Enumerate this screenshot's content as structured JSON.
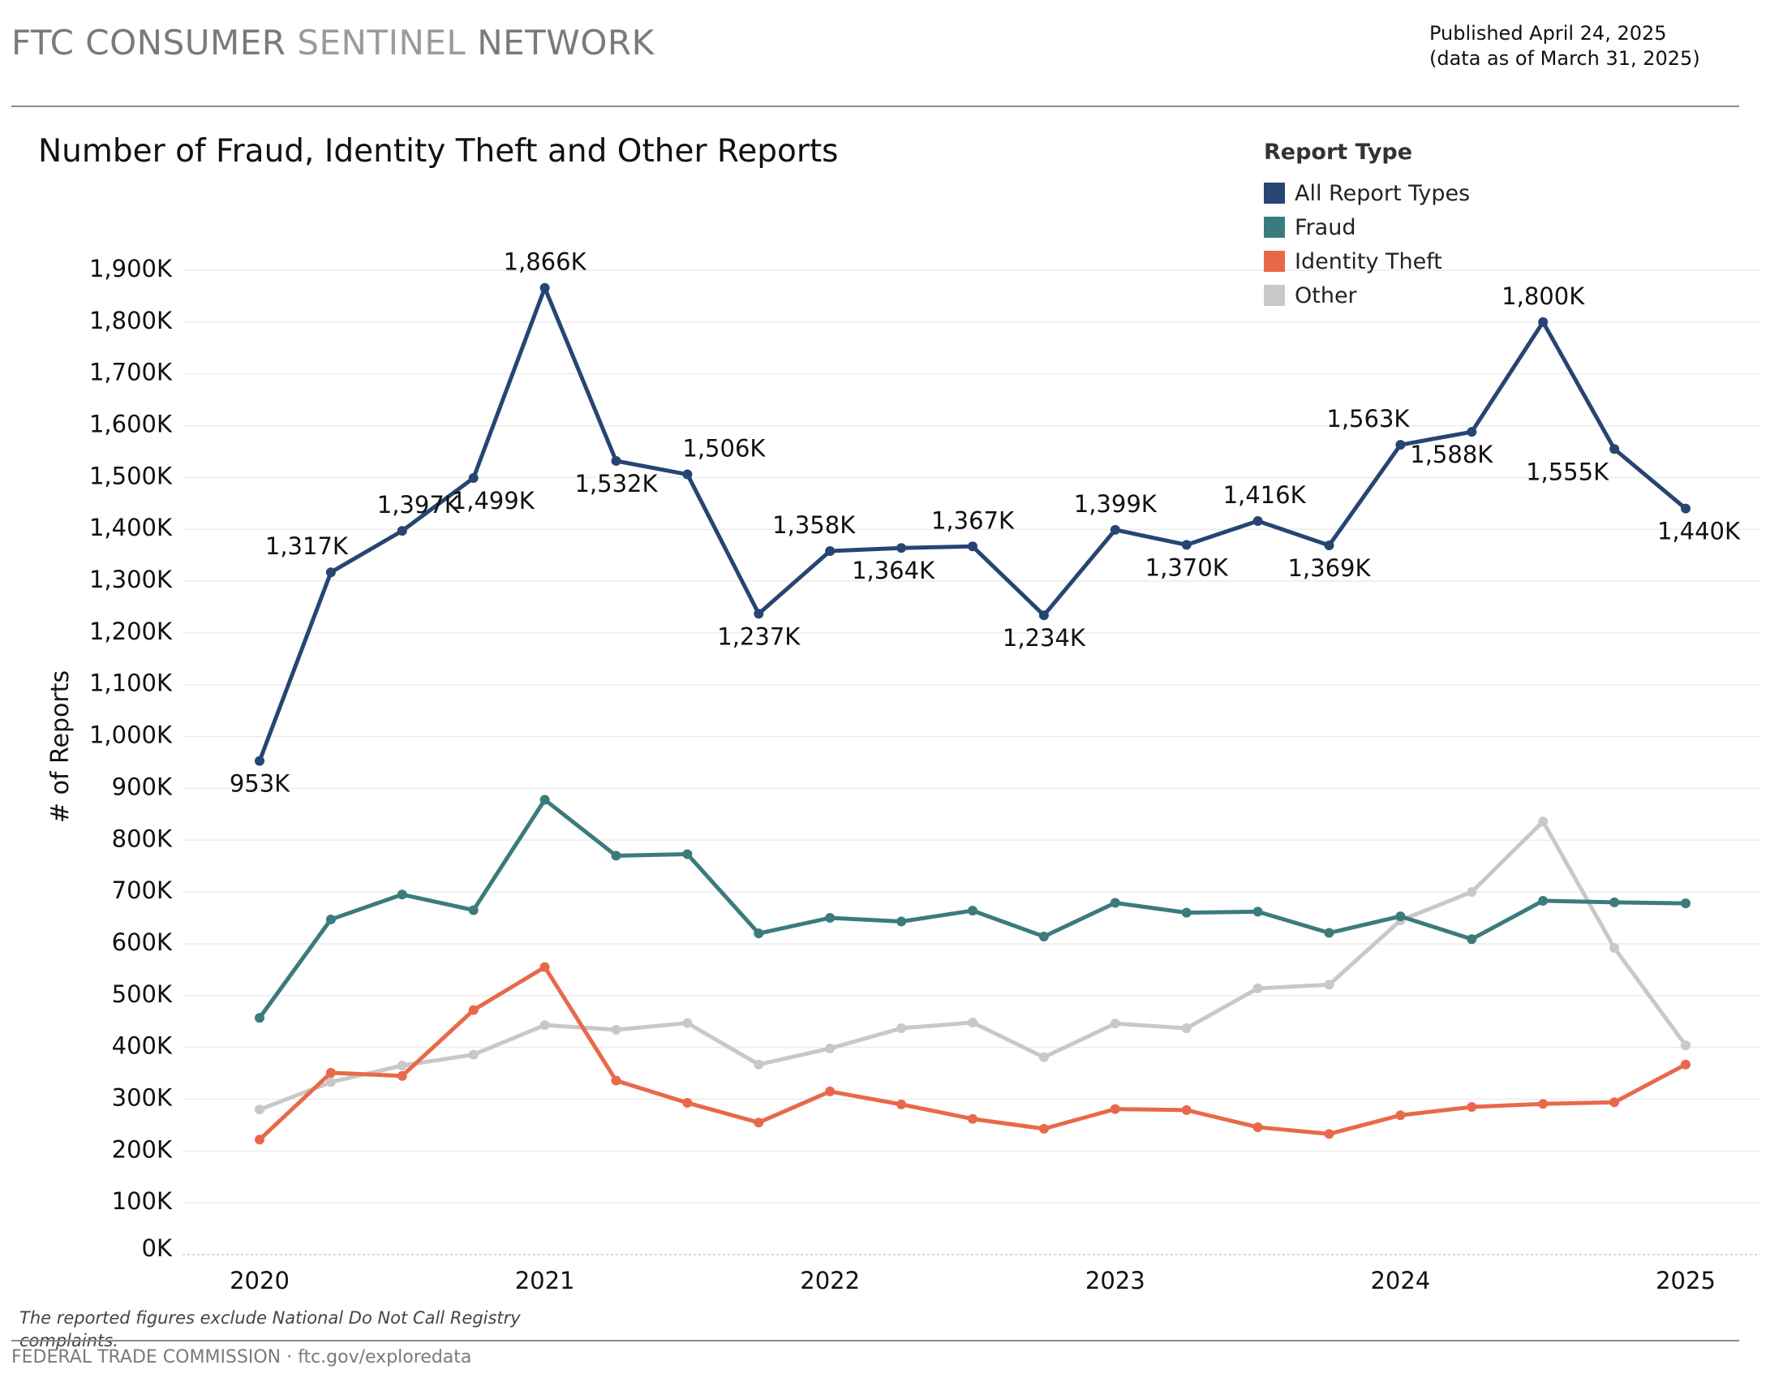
{
  "header": {
    "brand_part1": "FTC CONSUMER",
    "brand_part2": "SENTINEL",
    "brand_part3": "NETWORK",
    "published": "Published April 24, 2025",
    "data_as_of": "(data as of March 31, 2025)"
  },
  "footer": {
    "note": "The reported figures exclude National Do Not Call Registry complaints.",
    "credit": "FEDERAL TRADE COMMISSION · ftc.gov/exploredata"
  },
  "legend": {
    "title": "Report Type",
    "items": [
      {
        "label": "All Report Types",
        "color": "#264573"
      },
      {
        "label": "Fraud",
        "color": "#3b7b7c"
      },
      {
        "label": "Identity Theft",
        "color": "#e8694a"
      },
      {
        "label": "Other",
        "color": "#c8c8c8"
      }
    ]
  },
  "chart_data": {
    "type": "line",
    "title": "Number of Fraud, Identity Theft and Other Reports",
    "xlabel": "",
    "ylabel": "# of Reports",
    "ylim": [
      0,
      1900
    ],
    "yticks": [
      0,
      100,
      200,
      300,
      400,
      500,
      600,
      700,
      800,
      900,
      1000,
      1100,
      1200,
      1300,
      1400,
      1500,
      1600,
      1700,
      1800,
      1900
    ],
    "ytick_labels": [
      "0K",
      "100K",
      "200K",
      "300K",
      "400K",
      "500K",
      "600K",
      "700K",
      "800K",
      "900K",
      "1,000K",
      "1,100K",
      "1,200K",
      "1,300K",
      "1,400K",
      "1,500K",
      "1,600K",
      "1,700K",
      "1,800K",
      "1,900K"
    ],
    "xtick_labels": [
      "2020",
      "2021",
      "2022",
      "2023",
      "2024",
      "2025"
    ],
    "x": [
      "2020 Q1",
      "2020 Q2",
      "2020 Q3",
      "2020 Q4",
      "2021 Q1",
      "2021 Q2",
      "2021 Q3",
      "2021 Q4",
      "2022 Q1",
      "2022 Q2",
      "2022 Q3",
      "2022 Q4",
      "2023 Q1",
      "2023 Q2",
      "2023 Q3",
      "2023 Q4",
      "2024 Q1",
      "2024 Q2",
      "2024 Q3",
      "2024 Q4",
      "2025 Q1"
    ],
    "units": "thousands of reports",
    "grid": "horizontal",
    "legend_position": "top-right",
    "series": [
      {
        "name": "All Report Types",
        "color": "#264573",
        "values": [
          953,
          1317,
          1397,
          1499,
          1866,
          1532,
          1506,
          1237,
          1358,
          1364,
          1367,
          1234,
          1399,
          1370,
          1416,
          1369,
          1563,
          1588,
          1800,
          1555,
          1440
        ],
        "labels": [
          "953K",
          "1,317K",
          "1,397K",
          "1,499K",
          "1,866K",
          "1,532K",
          "1,506K",
          "1,237K",
          "1,358K",
          "1,364K",
          "1,367K",
          "1,234K",
          "1,399K",
          "1,370K",
          "1,416K",
          "1,369K",
          "1,563K",
          "1,588K",
          "1,800K",
          "1,555K",
          "1,440K"
        ]
      },
      {
        "name": "Fraud",
        "color": "#3b7b7c",
        "values": [
          457,
          647,
          695,
          665,
          878,
          770,
          773,
          620,
          650,
          643,
          664,
          614,
          679,
          660,
          662,
          621,
          653,
          609,
          683,
          680,
          678
        ]
      },
      {
        "name": "Identity Theft",
        "color": "#e8694a",
        "values": [
          222,
          351,
          345,
          472,
          555,
          336,
          293,
          255,
          315,
          290,
          262,
          243,
          281,
          279,
          246,
          233,
          269,
          285,
          291,
          294,
          367
        ]
      },
      {
        "name": "Other",
        "color": "#c8c8c8",
        "values": [
          280,
          333,
          365,
          386,
          443,
          434,
          447,
          367,
          398,
          437,
          448,
          381,
          446,
          437,
          514,
          521,
          645,
          700,
          836,
          592,
          404
        ]
      }
    ]
  }
}
